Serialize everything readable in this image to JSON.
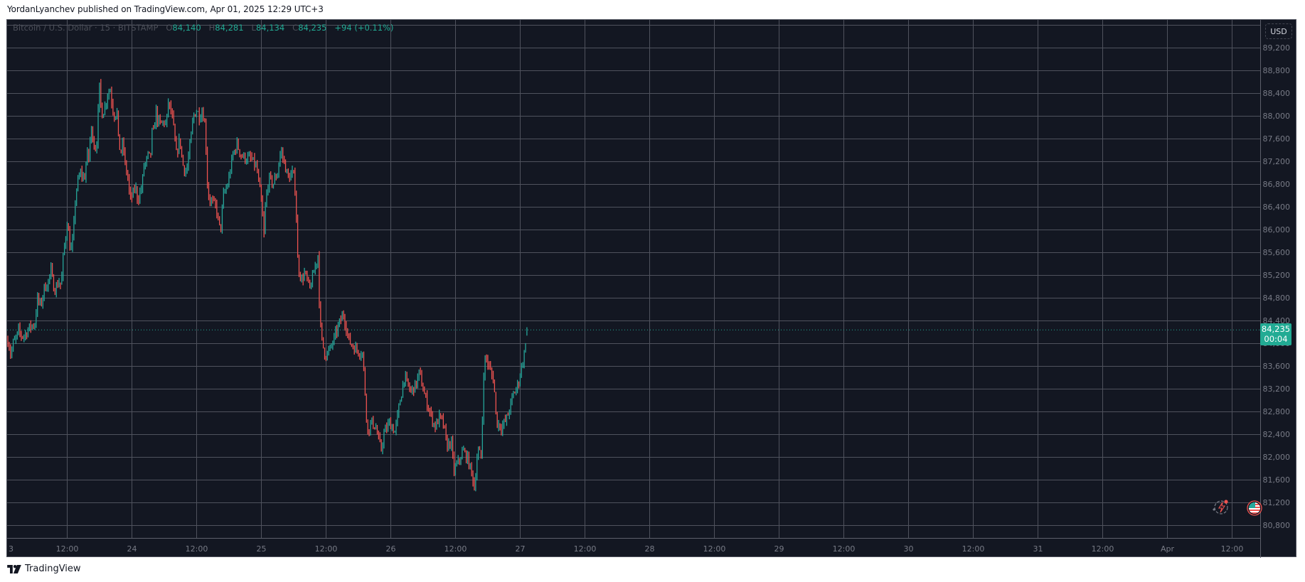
{
  "header": {
    "published_line": "YordanLyanchev published on TradingView.com, Apr 01, 2025 12:29 UTC+3"
  },
  "legend": {
    "symbol": "Bitcoin / U.S. Dollar · 15 · BITSTAMP",
    "open_label": "O",
    "open": "84,140",
    "high_label": "H",
    "high": "84,281",
    "low_label": "L",
    "low": "84,134",
    "close_label": "C",
    "close": "84,235",
    "change": "+94 (+0.11%)"
  },
  "price_axis": {
    "currency_button": "USD",
    "current_price": "84,235",
    "countdown": "00:04"
  },
  "footer": {
    "brand": "TradingView"
  },
  "colors": {
    "background": "#131722",
    "grid": "#4f525d",
    "axis_text": "#787b86",
    "up": "#26a69a",
    "down": "#ef5350",
    "price_line": "#22ab94"
  },
  "chart_data": {
    "type": "candlestick",
    "title": "Bitcoin / U.S. Dollar · 15 · BITSTAMP",
    "interval": "15m",
    "xlabel": "",
    "ylabel": "USD",
    "ylim": [
      80600,
      89600
    ],
    "y_ticks": [
      89200,
      88800,
      88400,
      88000,
      87600,
      87200,
      86800,
      86400,
      86000,
      85600,
      85200,
      84800,
      84400,
      84000,
      83600,
      83200,
      82800,
      82400,
      82000,
      81600,
      81200,
      80800
    ],
    "y_tick_labels": [
      "89,200",
      "88,800",
      "88,400",
      "88,000",
      "87,600",
      "87,200",
      "86,800",
      "86,400",
      "86,000",
      "85,600",
      "85,200",
      "84,800",
      "84,400",
      "84,000",
      "83,600",
      "83,200",
      "82,800",
      "82,400",
      "82,000",
      "81,600",
      "81,200",
      "80,800"
    ],
    "x_tick_labels": [
      "3",
      "12:00",
      "24",
      "12:00",
      "25",
      "12:00",
      "26",
      "12:00",
      "27",
      "12:00",
      "28",
      "12:00",
      "29",
      "12:00",
      "30",
      "12:00",
      "31",
      "12:00",
      "Apr",
      "12:00"
    ],
    "grid": true,
    "last_price": 84235,
    "ohlc_last": {
      "open": 84140,
      "high": 84281,
      "low": 84134,
      "close": 84235,
      "change": 94,
      "change_pct": 0.11
    },
    "approx_price_path": [
      [
        0,
        84050
      ],
      [
        0.3,
        83950
      ],
      [
        0.6,
        83760
      ],
      [
        0.9,
        83990
      ],
      [
        1.4,
        84050
      ],
      [
        2.0,
        84210
      ],
      [
        2.6,
        84125
      ],
      [
        3.2,
        84150
      ],
      [
        3.8,
        84250
      ],
      [
        4.4,
        84310
      ],
      [
        5.0,
        84340
      ],
      [
        5.2,
        84525
      ],
      [
        5.5,
        84775
      ],
      [
        6.1,
        84650
      ],
      [
        6.8,
        84990
      ],
      [
        7.3,
        85025
      ],
      [
        8.0,
        85275
      ],
      [
        8.4,
        85025
      ],
      [
        8.8,
        84950
      ],
      [
        9.5,
        85090
      ],
      [
        9.9,
        85000
      ],
      [
        10.2,
        85460
      ],
      [
        10.6,
        85775
      ],
      [
        11.0,
        86150
      ],
      [
        11.3,
        85900
      ],
      [
        11.5,
        85710
      ],
      [
        11.8,
        85650
      ],
      [
        12.1,
        85840
      ],
      [
        12.4,
        86340
      ],
      [
        12.6,
        86650
      ],
      [
        13.0,
        86840
      ],
      [
        13.6,
        87025
      ],
      [
        13.9,
        86900
      ],
      [
        14.3,
        86950
      ],
      [
        14.7,
        87340
      ],
      [
        15.0,
        87250
      ],
      [
        15.4,
        87775
      ],
      [
        15.8,
        87650
      ],
      [
        16.1,
        87400
      ],
      [
        16.5,
        87560
      ],
      [
        16.8,
        88150
      ],
      [
        17.0,
        88500
      ],
      [
        17.4,
        88025
      ],
      [
        18.0,
        88150
      ],
      [
        18.5,
        88400
      ],
      [
        19.0,
        88460
      ],
      [
        19.4,
        88150
      ],
      [
        19.9,
        87960
      ],
      [
        20.2,
        88200
      ],
      [
        20.4,
        87650
      ],
      [
        20.9,
        87340
      ],
      [
        21.4,
        87525
      ],
      [
        21.7,
        87150
      ],
      [
        22.3,
        86900
      ],
      [
        22.6,
        86525
      ],
      [
        23.2,
        86600
      ],
      [
        23.6,
        86775
      ],
      [
        24.1,
        86525
      ],
      [
        24.5,
        86650
      ],
      [
        24.9,
        86750
      ],
      [
        25.2,
        87150
      ],
      [
        25.6,
        87150
      ],
      [
        26.1,
        87340
      ],
      [
        26.4,
        87200
      ],
      [
        26.8,
        87775
      ],
      [
        27.1,
        87650
      ],
      [
        27.4,
        88150
      ],
      [
        27.8,
        87900
      ],
      [
        28.4,
        87850
      ],
      [
        29.0,
        87900
      ],
      [
        29.4,
        87800
      ],
      [
        29.7,
        88275
      ],
      [
        30.1,
        88100
      ],
      [
        30.4,
        88025
      ],
      [
        30.8,
        87740
      ],
      [
        31.2,
        87300
      ],
      [
        31.9,
        87600
      ],
      [
        32.4,
        87150
      ],
      [
        33.1,
        87000
      ],
      [
        33.7,
        87400
      ],
      [
        34.4,
        88000
      ],
      [
        35.0,
        88100
      ],
      [
        35.5,
        88000
      ],
      [
        36.1,
        88100
      ],
      [
        36.6,
        87800
      ],
      [
        37.1,
        86600
      ],
      [
        37.7,
        86500
      ],
      [
        38.6,
        86400
      ],
      [
        39.4,
        85950
      ],
      [
        40.0,
        86600
      ],
      [
        40.8,
        86800
      ],
      [
        41.7,
        87300
      ],
      [
        42.5,
        87500
      ],
      [
        43.3,
        87300
      ],
      [
        44.2,
        87250
      ],
      [
        45.0,
        87250
      ],
      [
        46.1,
        87100
      ],
      [
        47.0,
        86500
      ],
      [
        47.5,
        85900
      ],
      [
        47.8,
        86500
      ],
      [
        48.4,
        86900
      ],
      [
        49.2,
        86800
      ],
      [
        50.0,
        87000
      ],
      [
        50.6,
        87400
      ],
      [
        51.2,
        87200
      ],
      [
        52.0,
        86900
      ],
      [
        52.9,
        87000
      ],
      [
        53.4,
        86600
      ],
      [
        53.7,
        85500
      ],
      [
        54.0,
        85300
      ],
      [
        54.5,
        85100
      ],
      [
        55.0,
        85240
      ],
      [
        56.0,
        84950
      ],
      [
        57.5,
        85550
      ],
      [
        57.7,
        84900
      ],
      [
        57.9,
        84360
      ],
      [
        58.3,
        84000
      ],
      [
        58.9,
        83775
      ],
      [
        59.6,
        83860
      ],
      [
        60.2,
        84000
      ],
      [
        61.2,
        84275
      ],
      [
        62.2,
        84525
      ],
      [
        63.3,
        84025
      ],
      [
        64.5,
        83900
      ],
      [
        65.8,
        83815
      ],
      [
        66.1,
        83360
      ],
      [
        66.7,
        82440
      ],
      [
        67.5,
        82610
      ],
      [
        68.2,
        82525
      ],
      [
        69.2,
        82110
      ],
      [
        69.7,
        82400
      ],
      [
        70.8,
        82610
      ],
      [
        71.8,
        82440
      ],
      [
        72.8,
        83025
      ],
      [
        73.5,
        83400
      ],
      [
        74.7,
        83150
      ],
      [
        75.7,
        83275
      ],
      [
        76.3,
        83490
      ],
      [
        77.2,
        83110
      ],
      [
        78.2,
        82810
      ],
      [
        79.2,
        82525
      ],
      [
        80.0,
        82690
      ],
      [
        80.7,
        82610
      ],
      [
        81.4,
        82190
      ],
      [
        82.2,
        82275
      ],
      [
        82.7,
        81750
      ],
      [
        83.5,
        81900
      ],
      [
        84.4,
        82110
      ],
      [
        85.2,
        81985
      ],
      [
        86.2,
        81650
      ],
      [
        86.5,
        81450
      ],
      [
        87.1,
        82110
      ],
      [
        87.9,
        81985
      ],
      [
        88.1,
        83360
      ],
      [
        88.6,
        83775
      ],
      [
        89.4,
        83525
      ],
      [
        90.1,
        83360
      ],
      [
        90.6,
        82610
      ],
      [
        91.6,
        82525
      ],
      [
        92.6,
        82690
      ],
      [
        93.6,
        83060
      ],
      [
        94.6,
        83275
      ],
      [
        95.3,
        83600
      ],
      [
        95.9,
        83900
      ],
      [
        96.3,
        84235
      ]
    ]
  }
}
